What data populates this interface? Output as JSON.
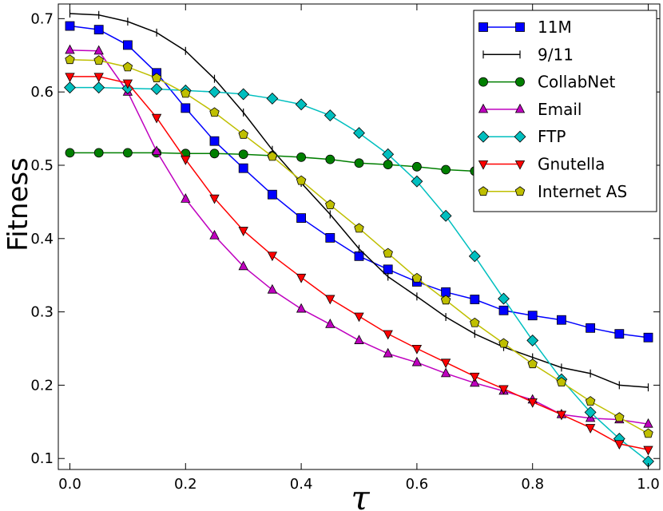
{
  "chart_data": {
    "type": "line",
    "xlabel": "τ",
    "ylabel": "Fitness",
    "xlim": [
      -0.02,
      1.02
    ],
    "ylim": [
      0.085,
      0.72
    ],
    "xticks": [
      "0.0",
      "0.2",
      "0.4",
      "0.6",
      "0.8",
      "1.0"
    ],
    "yticks": [
      "0.1",
      "0.2",
      "0.3",
      "0.4",
      "0.5",
      "0.6",
      "0.7"
    ],
    "xtick_values": [
      0.0,
      0.2,
      0.4,
      0.6,
      0.8,
      1.0
    ],
    "ytick_values": [
      0.1,
      0.2,
      0.3,
      0.4,
      0.5,
      0.6,
      0.7
    ],
    "grid": false,
    "legend_position": "top-right",
    "x": [
      0.0,
      0.05,
      0.1,
      0.15,
      0.2,
      0.25,
      0.3,
      0.35,
      0.4,
      0.45,
      0.5,
      0.55,
      0.6,
      0.65,
      0.7,
      0.75,
      0.8,
      0.85,
      0.9,
      0.95,
      1.0
    ],
    "series": [
      {
        "name": "11M",
        "color": "#0000ff",
        "marker": "square",
        "values": [
          0.69,
          0.685,
          0.664,
          0.626,
          0.578,
          0.533,
          0.496,
          0.46,
          0.428,
          0.401,
          0.376,
          0.358,
          0.341,
          0.327,
          0.317,
          0.302,
          0.295,
          0.289,
          0.278,
          0.27,
          0.265
        ]
      },
      {
        "name": "9/11",
        "color": "#000000",
        "marker": "tick",
        "values": [
          0.707,
          0.705,
          0.696,
          0.681,
          0.656,
          0.618,
          0.572,
          0.521,
          0.476,
          0.433,
          0.386,
          0.348,
          0.321,
          0.293,
          0.27,
          0.252,
          0.238,
          0.224,
          0.216,
          0.2,
          0.197
        ]
      },
      {
        "name": "CollabNet",
        "color": "#007f00",
        "marker": "circle",
        "values": [
          0.517,
          0.517,
          0.517,
          0.517,
          0.516,
          0.516,
          0.515,
          0.513,
          0.511,
          0.508,
          0.503,
          0.501,
          0.498,
          0.494,
          0.492,
          0.49,
          0.49,
          0.489,
          0.489,
          0.488,
          0.487
        ]
      },
      {
        "name": "Email",
        "color": "#bf00bf",
        "marker": "triangle-up",
        "values": [
          0.657,
          0.656,
          0.6,
          0.519,
          0.454,
          0.404,
          0.362,
          0.33,
          0.304,
          0.283,
          0.261,
          0.243,
          0.231,
          0.216,
          0.203,
          0.192,
          0.18,
          0.16,
          0.155,
          0.153,
          0.147
        ]
      },
      {
        "name": "FTP",
        "color": "#00bfbf",
        "marker": "diamond",
        "values": [
          0.606,
          0.606,
          0.605,
          0.604,
          0.602,
          0.6,
          0.597,
          0.591,
          0.583,
          0.568,
          0.544,
          0.515,
          0.478,
          0.431,
          0.376,
          0.318,
          0.261,
          0.208,
          0.163,
          0.127,
          0.096
        ]
      },
      {
        "name": "Gnutella",
        "color": "#ff0000",
        "marker": "triangle-down",
        "values": [
          0.621,
          0.621,
          0.612,
          0.565,
          0.508,
          0.455,
          0.411,
          0.377,
          0.347,
          0.318,
          0.294,
          0.27,
          0.25,
          0.231,
          0.212,
          0.195,
          0.177,
          0.16,
          0.142,
          0.12,
          0.112
        ]
      },
      {
        "name": "Internet AS",
        "color": "#bfbf00",
        "marker": "pentagon",
        "values": [
          0.644,
          0.643,
          0.634,
          0.619,
          0.598,
          0.572,
          0.542,
          0.512,
          0.479,
          0.446,
          0.414,
          0.38,
          0.346,
          0.316,
          0.285,
          0.257,
          0.229,
          0.204,
          0.178,
          0.156,
          0.134
        ]
      }
    ]
  }
}
